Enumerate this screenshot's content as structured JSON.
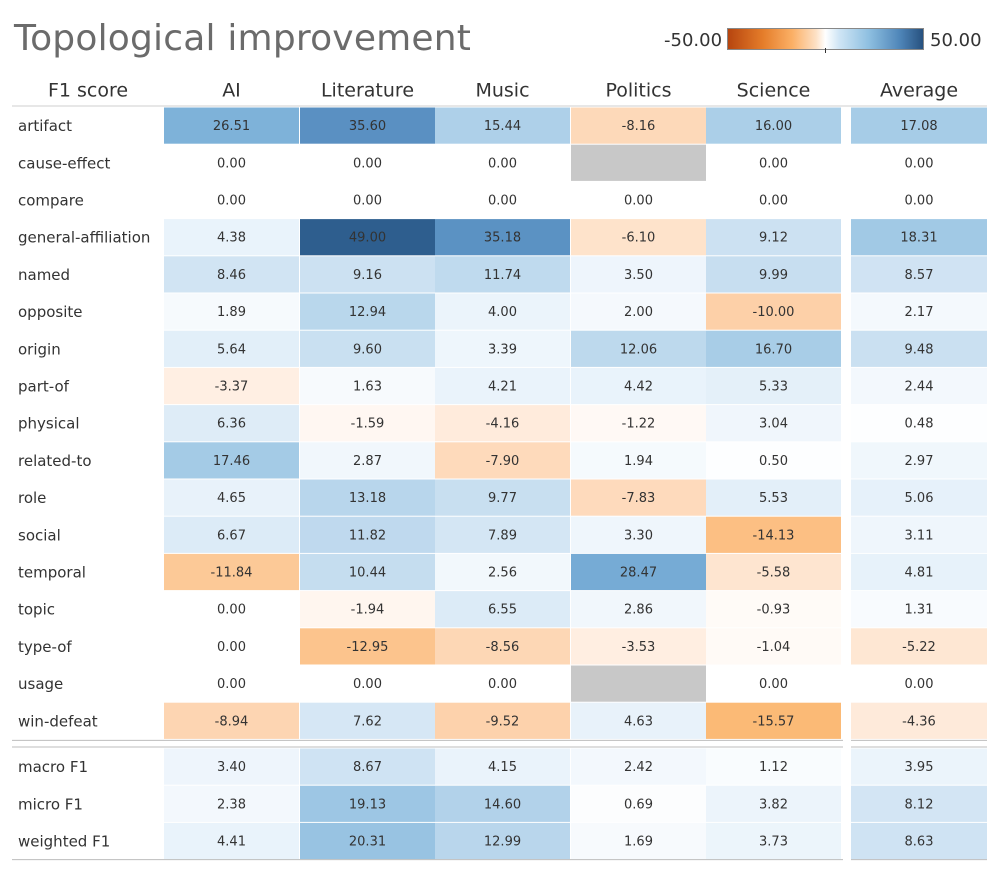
{
  "title": "Topological improvement",
  "legend": {
    "min_label": "-50.00",
    "max_label": "50.00"
  },
  "colors": {
    "negative_end": "#b6450f",
    "positive_end": "#27517f",
    "missing": "#c8c8c8"
  },
  "chart_data": {
    "type": "heatmap",
    "title": "Topological improvement",
    "row_header": "F1 score",
    "columns": [
      "AI",
      "Literature",
      "Music",
      "Politics",
      "Science"
    ],
    "average_column": "Average",
    "value_range": [
      -50,
      50
    ],
    "rows": [
      {
        "label": "artifact",
        "values": [
          "26.51",
          "35.60",
          "15.44",
          "-8.16",
          "16.00"
        ],
        "average": "17.08"
      },
      {
        "label": "cause-effect",
        "values": [
          "0.00",
          "0.00",
          "0.00",
          null,
          "0.00"
        ],
        "average": "0.00"
      },
      {
        "label": "compare",
        "values": [
          "0.00",
          "0.00",
          "0.00",
          "0.00",
          "0.00"
        ],
        "average": "0.00"
      },
      {
        "label": "general-affiliation",
        "values": [
          "4.38",
          "49.00",
          "35.18",
          "-6.10",
          "9.12"
        ],
        "average": "18.31"
      },
      {
        "label": "named",
        "values": [
          "8.46",
          "9.16",
          "11.74",
          "3.50",
          "9.99"
        ],
        "average": "8.57"
      },
      {
        "label": "opposite",
        "values": [
          "1.89",
          "12.94",
          "4.00",
          "2.00",
          "-10.00"
        ],
        "average": "2.17"
      },
      {
        "label": "origin",
        "values": [
          "5.64",
          "9.60",
          "3.39",
          "12.06",
          "16.70"
        ],
        "average": "9.48"
      },
      {
        "label": "part-of",
        "values": [
          "-3.37",
          "1.63",
          "4.21",
          "4.42",
          "5.33"
        ],
        "average": "2.44"
      },
      {
        "label": "physical",
        "values": [
          "6.36",
          "-1.59",
          "-4.16",
          "-1.22",
          "3.04"
        ],
        "average": "0.48"
      },
      {
        "label": "related-to",
        "values": [
          "17.46",
          "2.87",
          "-7.90",
          "1.94",
          "0.50"
        ],
        "average": "2.97"
      },
      {
        "label": "role",
        "values": [
          "4.65",
          "13.18",
          "9.77",
          "-7.83",
          "5.53"
        ],
        "average": "5.06"
      },
      {
        "label": "social",
        "values": [
          "6.67",
          "11.82",
          "7.89",
          "3.30",
          "-14.13"
        ],
        "average": "3.11"
      },
      {
        "label": "temporal",
        "values": [
          "-11.84",
          "10.44",
          "2.56",
          "28.47",
          "-5.58"
        ],
        "average": "4.81"
      },
      {
        "label": "topic",
        "values": [
          "0.00",
          "-1.94",
          "6.55",
          "2.86",
          "-0.93"
        ],
        "average": "1.31"
      },
      {
        "label": "type-of",
        "values": [
          "0.00",
          "-12.95",
          "-8.56",
          "-3.53",
          "-1.04"
        ],
        "average": "-5.22"
      },
      {
        "label": "usage",
        "values": [
          "0.00",
          "0.00",
          "0.00",
          null,
          "0.00"
        ],
        "average": "0.00"
      },
      {
        "label": "win-defeat",
        "values": [
          "-8.94",
          "7.62",
          "-9.52",
          "4.63",
          "-15.57"
        ],
        "average": "-4.36"
      }
    ],
    "summary_rows": [
      {
        "label": "macro F1",
        "values": [
          "3.40",
          "8.67",
          "4.15",
          "2.42",
          "1.12"
        ],
        "average": "3.95"
      },
      {
        "label": "micro F1",
        "values": [
          "2.38",
          "19.13",
          "14.60",
          "0.69",
          "3.82"
        ],
        "average": "8.12"
      },
      {
        "label": "weighted F1",
        "values": [
          "4.41",
          "20.31",
          "12.99",
          "1.69",
          "3.73"
        ],
        "average": "8.63"
      }
    ]
  }
}
